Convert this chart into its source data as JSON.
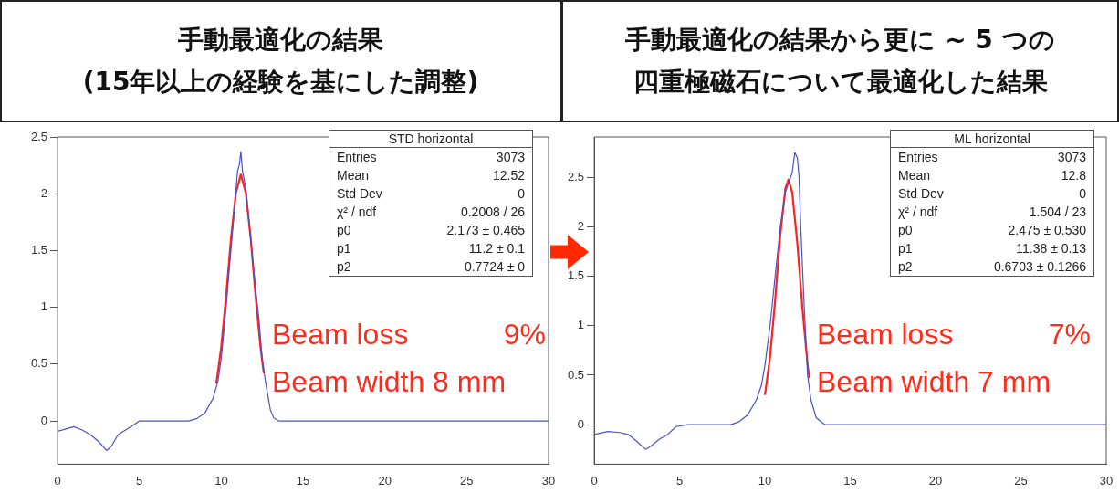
{
  "chart_data": [
    {
      "type": "line",
      "title": "手動最適化の結果\n(15年以上の経験を基にした調整)",
      "xlim": [
        0,
        30
      ],
      "xticks": [
        0,
        5,
        10,
        15,
        20,
        25,
        30
      ],
      "ylim": [
        -0.38,
        2.5
      ],
      "yticks": [
        0,
        0.5,
        1,
        1.5,
        2,
        2.5
      ],
      "grid": false,
      "legend": false,
      "marker": "none",
      "series": [
        {
          "color": "#4a52c8",
          "x": [
            0,
            1,
            1.5,
            2,
            2.5,
            3,
            3.3,
            3.7,
            4.5,
            5,
            8,
            8.5,
            9,
            9.5,
            9.8,
            10,
            10.3,
            10.5,
            10.8,
            11,
            11.1,
            11.2,
            11.3,
            11.5,
            11.8,
            12,
            12.3,
            12.5,
            12.7,
            13,
            13.2,
            13.5,
            30
          ],
          "values": [
            -0.09,
            -0.05,
            -0.08,
            -0.12,
            -0.18,
            -0.26,
            -0.22,
            -0.12,
            -0.05,
            0,
            0,
            0.02,
            0.07,
            0.2,
            0.35,
            0.55,
            1.0,
            1.35,
            1.85,
            2.2,
            2.25,
            2.37,
            2.2,
            2.05,
            1.6,
            1.3,
            0.9,
            0.55,
            0.35,
            0.1,
            0.03,
            0,
            0
          ]
        },
        {
          "color": "#ff2020",
          "x": [
            9.7,
            10,
            10.3,
            10.6,
            10.9,
            11.2,
            11.5,
            11.8,
            12.1,
            12.4,
            12.6
          ],
          "values": [
            0.33,
            0.65,
            1.1,
            1.61,
            2.01,
            2.17,
            2.01,
            1.61,
            1.1,
            0.65,
            0.42
          ]
        }
      ],
      "annotations": [
        "STD horizontal",
        "Entries",
        "3073",
        "Mean",
        "12.52",
        "Std Dev",
        "0",
        "χ² / ndf",
        "0.2008 / 26",
        "p0",
        "2.173 ± 0.465",
        "p1",
        "11.2 ± 0.1",
        "p2",
        "0.7724 ± 0",
        "Beam loss",
        "9%",
        "Beam width 8 mm"
      ]
    },
    {
      "type": "line",
      "title": "手動最適化の結果から更に ~ 5 つの四重極磁石について最適化した結果",
      "xlim": [
        0,
        30
      ],
      "xticks": [
        0,
        5,
        10,
        15,
        20,
        25,
        30
      ],
      "ylim": [
        -0.4,
        2.91
      ],
      "yticks": [
        0,
        0.5,
        1,
        1.5,
        2,
        2.5
      ],
      "grid": false,
      "legend": false,
      "marker": "none",
      "series": [
        {
          "color": "#4a52c8",
          "x": [
            0,
            0.8,
            1.5,
            2,
            2.5,
            3,
            3.3,
            3.8,
            4.3,
            4.8,
            5.5,
            8,
            8.5,
            9,
            9.5,
            9.8,
            10,
            10.3,
            10.6,
            10.9,
            11.2,
            11.4,
            11.6,
            11.75,
            11.9,
            12,
            12.1,
            12.3,
            12.5,
            12.7,
            13,
            13.5,
            30
          ],
          "values": [
            -0.1,
            -0.07,
            -0.08,
            -0.1,
            -0.17,
            -0.25,
            -0.22,
            -0.15,
            -0.1,
            -0.02,
            0,
            0,
            0.03,
            0.1,
            0.25,
            0.4,
            0.6,
            1.0,
            1.5,
            2.0,
            2.35,
            2.45,
            2.55,
            2.75,
            2.7,
            2.5,
            2.0,
            1.2,
            0.5,
            0.25,
            0.07,
            0,
            0
          ]
        },
        {
          "color": "#ff2020",
          "x": [
            10,
            10.3,
            10.6,
            10.9,
            11.2,
            11.38,
            11.6,
            11.9,
            12.2,
            12.5,
            12.6
          ],
          "values": [
            0.3,
            0.68,
            1.26,
            1.92,
            2.39,
            2.48,
            2.35,
            1.83,
            1.17,
            0.61,
            0.47
          ]
        }
      ],
      "annotations": [
        "ML horizontal",
        "Entries",
        "3073",
        "Mean",
        "12.8",
        "Std Dev",
        "0",
        "χ² / ndf",
        "1.504 / 23",
        "p0",
        "2.475 ± 0.530",
        "p1",
        "11.38 ± 0.13",
        "p2",
        "0.6703 ± 0.1266",
        "Beam loss",
        "7%",
        "Beam width 7 mm"
      ]
    }
  ]
}
